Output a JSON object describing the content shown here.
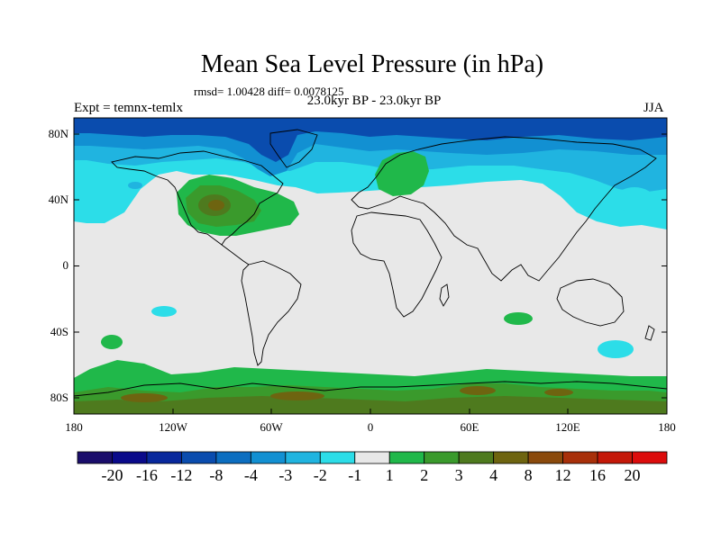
{
  "title": "Mean Sea Level Pressure (in hPa)",
  "stats": "rmsd= 1.00428 diff= 0.0078125",
  "subtitle": "23.0kyr BP - 23.0kyr BP",
  "expt": "Expt = temnx-temlx",
  "season": "JJA",
  "lat_labels": [
    "80N",
    "40N",
    "0",
    "40S",
    "80S"
  ],
  "lon_labels": [
    "180",
    "120W",
    "60W",
    "0",
    "60E",
    "120E",
    "180"
  ],
  "colorbar": {
    "colors": [
      "#1a0d6b",
      "#0a0a8a",
      "#08289c",
      "#0a4cae",
      "#0c6ec0",
      "#1290d2",
      "#20b4e0",
      "#2cdde8",
      "#e8e8e8",
      "#20b84a",
      "#3a9a2c",
      "#4e7a1e",
      "#6e6410",
      "#8a4a0c",
      "#a8300a",
      "#c41808",
      "#dc0c0c"
    ],
    "labels": [
      "-20",
      "-16",
      "-12",
      "-8",
      "-4",
      "-3",
      "-2",
      "-1",
      "1",
      "2",
      "3",
      "4",
      "8",
      "12",
      "16",
      "20"
    ]
  },
  "field_colors": {
    "bg": "#e8e8e8",
    "deep_blue": "#0a4cae",
    "mid_blue": "#1290d2",
    "light_blue": "#20b4e0",
    "cyan": "#2cdde8",
    "green": "#20b84a",
    "dk_green": "#3a9a2c",
    "olive": "#4e7a1e",
    "brown": "#6e6410",
    "coast": "#000000"
  }
}
